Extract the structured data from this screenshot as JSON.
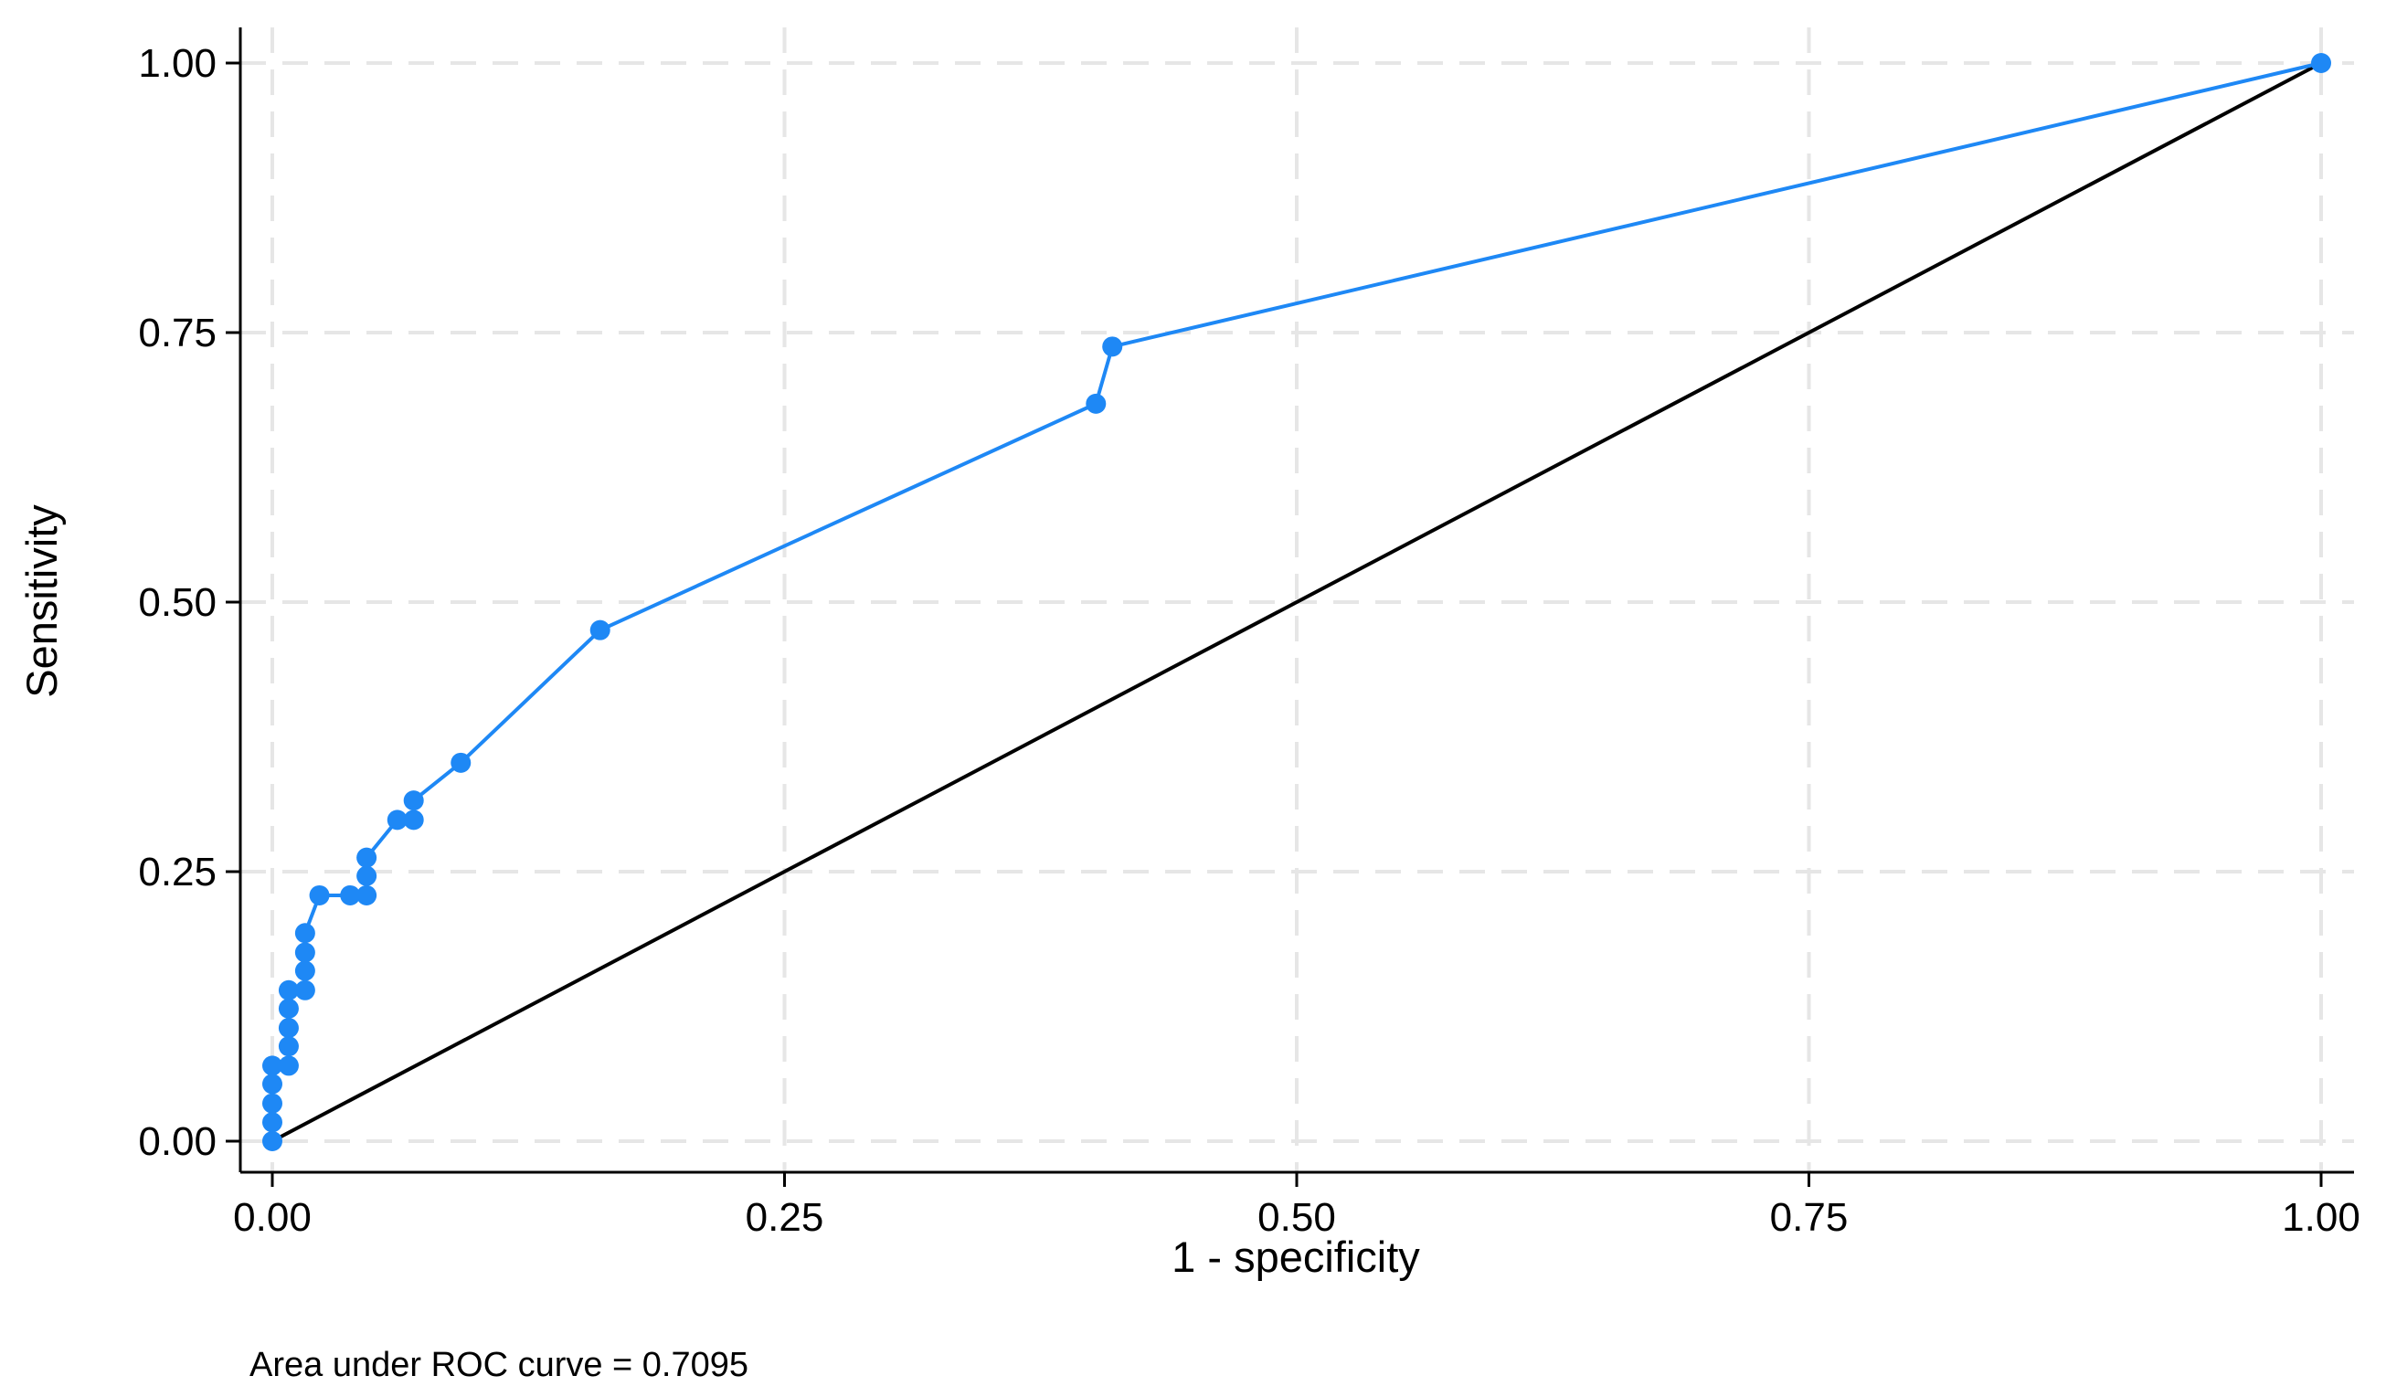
{
  "chart_data": {
    "type": "line",
    "title": "",
    "xlabel": "1 - specificity",
    "ylabel": "Sensitivity",
    "xlim": [
      0,
      1
    ],
    "ylim": [
      0,
      1
    ],
    "x_ticks": [
      "0.00",
      "0.25",
      "0.50",
      "0.75",
      "1.00"
    ],
    "y_ticks": [
      "0.00",
      "0.25",
      "0.50",
      "0.75",
      "1.00"
    ],
    "grid": true,
    "grid_style": "dashed",
    "legend": "none",
    "note": "Area under ROC curve = 0.7095",
    "series": [
      {
        "color": "#1e88f5",
        "markers": true,
        "points": [
          {
            "x": 0.0,
            "y": 0.0
          },
          {
            "x": 0.0,
            "y": 0.0175
          },
          {
            "x": 0.0,
            "y": 0.035
          },
          {
            "x": 0.0,
            "y": 0.053
          },
          {
            "x": 0.0,
            "y": 0.07
          },
          {
            "x": 0.008,
            "y": 0.07
          },
          {
            "x": 0.008,
            "y": 0.088
          },
          {
            "x": 0.008,
            "y": 0.105
          },
          {
            "x": 0.008,
            "y": 0.123
          },
          {
            "x": 0.008,
            "y": 0.14
          },
          {
            "x": 0.016,
            "y": 0.14
          },
          {
            "x": 0.016,
            "y": 0.158
          },
          {
            "x": 0.016,
            "y": 0.175
          },
          {
            "x": 0.016,
            "y": 0.193
          },
          {
            "x": 0.023,
            "y": 0.228
          },
          {
            "x": 0.038,
            "y": 0.228
          },
          {
            "x": 0.046,
            "y": 0.228
          },
          {
            "x": 0.046,
            "y": 0.246
          },
          {
            "x": 0.046,
            "y": 0.263
          },
          {
            "x": 0.061,
            "y": 0.298
          },
          {
            "x": 0.069,
            "y": 0.298
          },
          {
            "x": 0.069,
            "y": 0.316
          },
          {
            "x": 0.092,
            "y": 0.351
          },
          {
            "x": 0.16,
            "y": 0.474
          },
          {
            "x": 0.402,
            "y": 0.684
          },
          {
            "x": 0.41,
            "y": 0.737
          },
          {
            "x": 1.0,
            "y": 1.0
          }
        ]
      }
    ],
    "reference_line": {
      "color": "#000000",
      "points": [
        {
          "x": 0.0,
          "y": 0.0
        },
        {
          "x": 1.0,
          "y": 1.0
        }
      ]
    }
  }
}
